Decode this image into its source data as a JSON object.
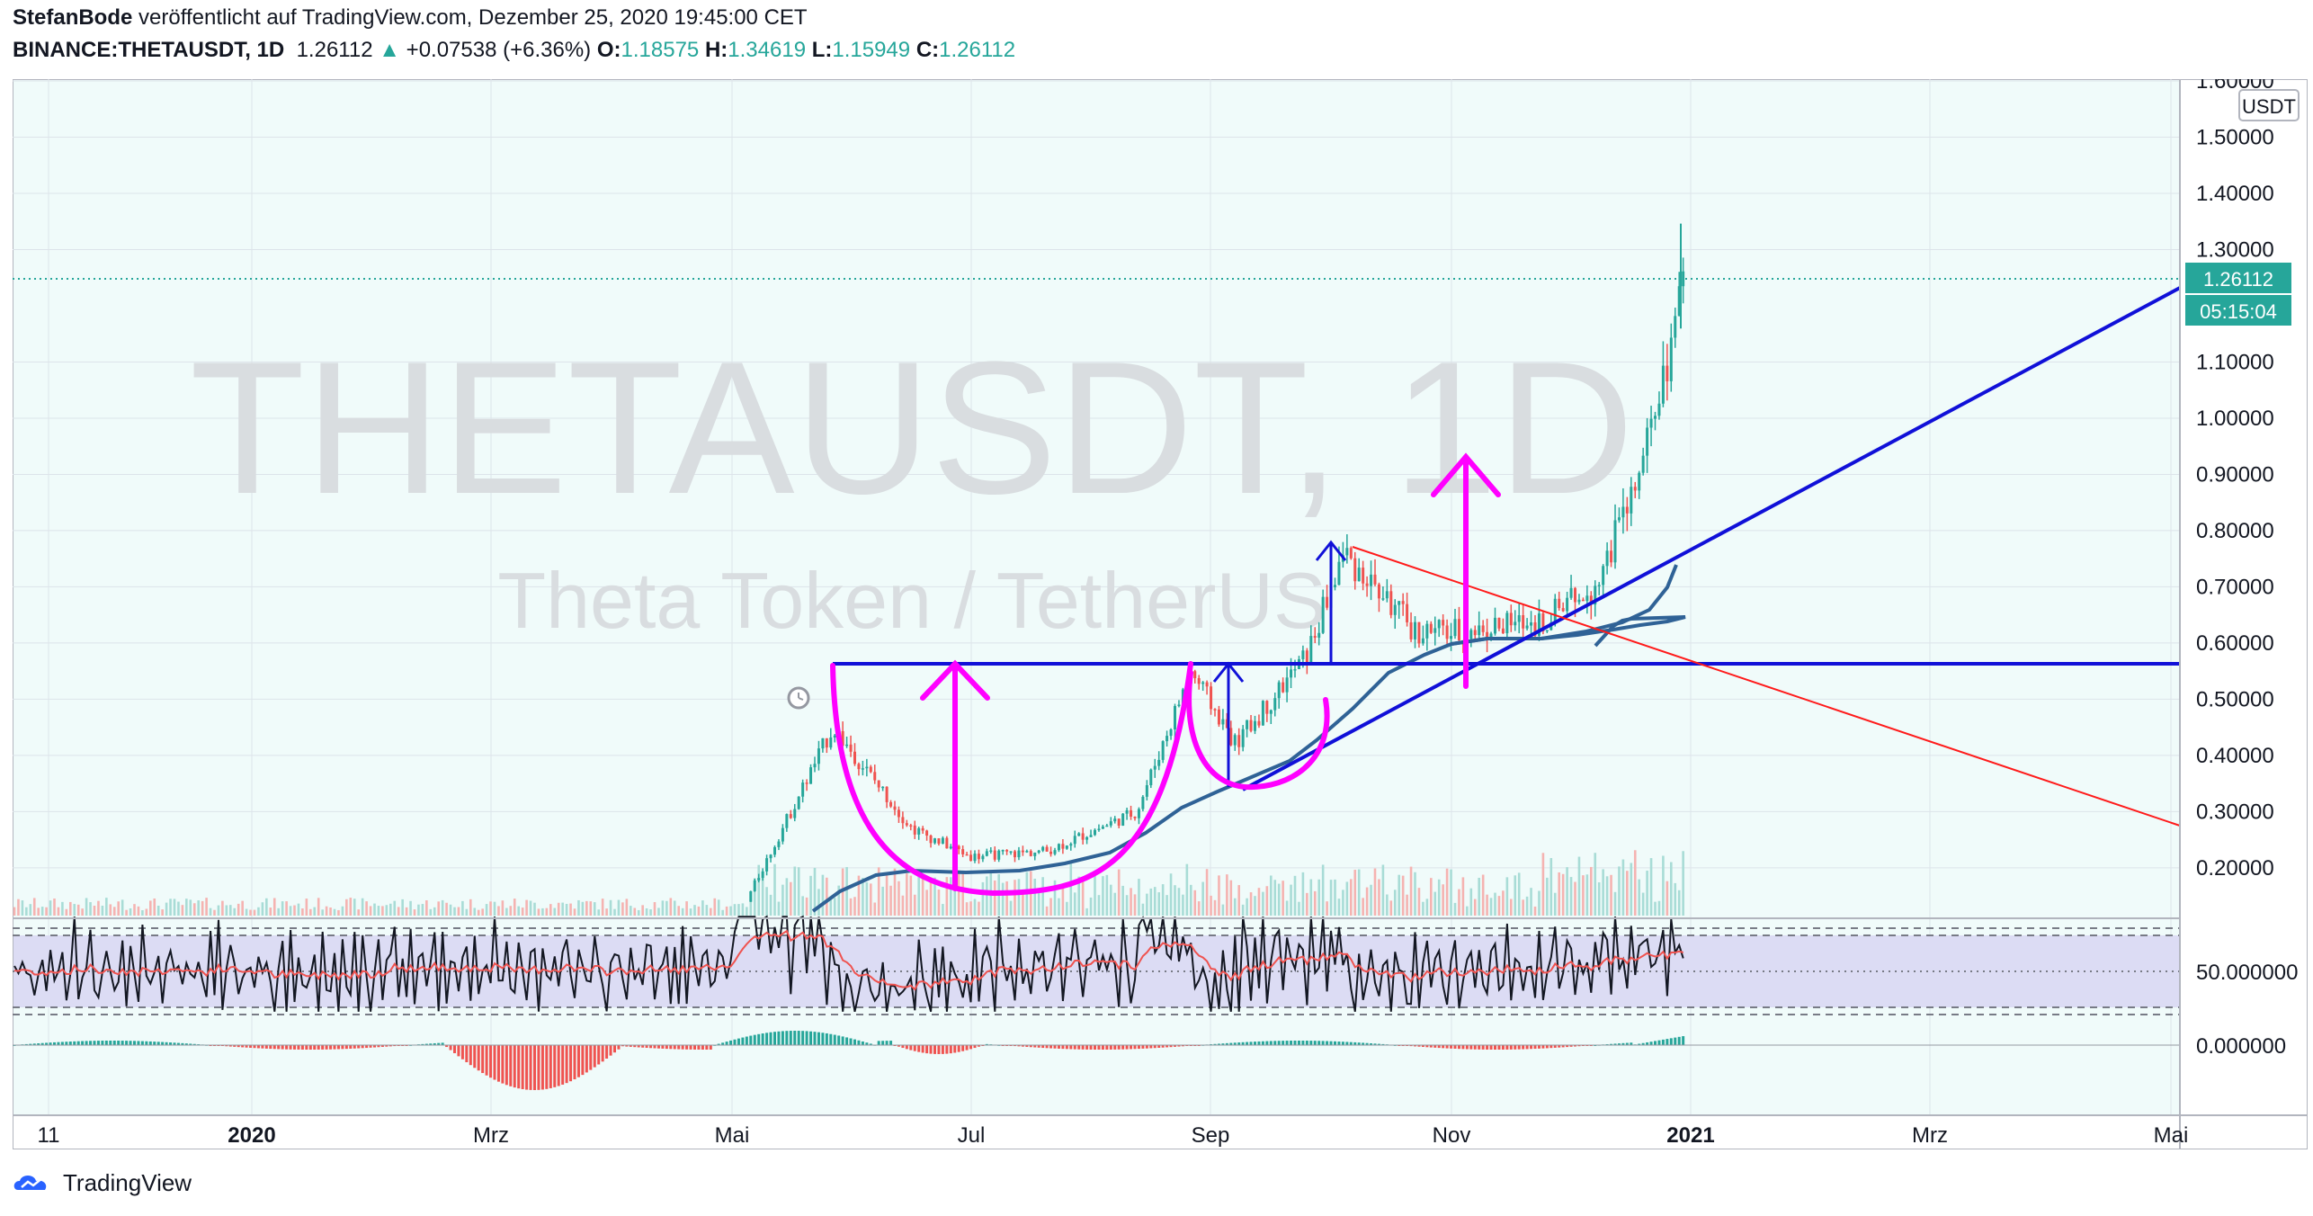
{
  "header": {
    "author": "StefanBode",
    "published": "veröffentlicht auf TradingView.com, Dezember 25, 2020 19:45:00 CET",
    "symbol": "BINANCE:THETAUSDT, 1D",
    "last": "1.26112",
    "change": "+0.07538 (+6.36%)",
    "o_label": "O:",
    "o_value": "1.18575",
    "h_label": "H:",
    "h_value": "1.34619",
    "l_label": "L:",
    "l_value": "1.15949",
    "c_label": "C:",
    "c_value": "1.26112"
  },
  "watermark": {
    "symbol": "THETAUSDT, 1D",
    "name": "Theta Token / TetherUS"
  },
  "price_axis": {
    "currency": "USDT",
    "ticks": [
      "1.60000",
      "1.50000",
      "1.40000",
      "1.30000",
      "1.10000",
      "1.00000",
      "0.90000",
      "0.80000",
      "0.70000",
      "0.60000",
      "0.50000",
      "0.40000",
      "0.30000",
      "0.20000"
    ],
    "last_price_label": "1.26112",
    "countdown_label": "05:15:04"
  },
  "rsi_axis": {
    "tick": "50.000000"
  },
  "macd_axis": {
    "tick": "0.000000"
  },
  "time_axis": {
    "ticks": [
      "11",
      "2020",
      "Mrz",
      "Mai",
      "Jul",
      "Sep",
      "Nov",
      "2021",
      "Mrz",
      "Mai"
    ]
  },
  "footer": {
    "brand": "TradingView"
  },
  "colors": {
    "up": "#26a69a",
    "down": "#ef5350",
    "bg": "#f0fbfa",
    "trend_blue": "#1010d8",
    "annotation": "#ff00ff",
    "ma": "#2f6296",
    "red_line": "#ff1a1a"
  },
  "chart_data": {
    "type": "candlestick",
    "symbol": "BINANCE:THETAUSDT",
    "interval": "1D",
    "ylim": [
      0.15,
      1.6
    ],
    "x": [
      "2019-12",
      "2020-01",
      "2020-02",
      "2020-03",
      "2020-04",
      "2020-05",
      "2020-05-15",
      "2020-06",
      "2020-06-20",
      "2020-07",
      "2020-08",
      "2020-08-25",
      "2020-09",
      "2020-09-15",
      "2020-10",
      "2020-10-20",
      "2020-11",
      "2020-11-15",
      "2020-12-01",
      "2020-12-10",
      "2020-12-20",
      "2020-12-25"
    ],
    "close": [
      0.09,
      0.09,
      0.09,
      0.07,
      0.08,
      0.09,
      0.45,
      0.27,
      0.22,
      0.23,
      0.3,
      0.55,
      0.42,
      0.58,
      0.76,
      0.62,
      0.62,
      0.64,
      0.7,
      0.9,
      1.15,
      1.26112
    ],
    "last": {
      "open": 1.18575,
      "high": 1.34619,
      "low": 1.15949,
      "close": 1.26112
    },
    "horizontal_levels": [
      0.59
    ]
  }
}
